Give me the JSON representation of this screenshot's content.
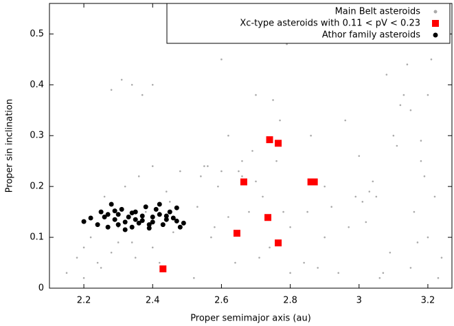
{
  "chart_data": {
    "type": "scatter",
    "x_label": "Proper semimajor axis (au)",
    "y_label": "Proper sin inclination",
    "xlim": [
      2.1,
      3.27
    ],
    "ylim": [
      0,
      0.56
    ],
    "xticks": [
      2.2,
      2.4,
      2.6,
      2.8,
      3,
      3.2
    ],
    "yticks": [
      0,
      0.1,
      0.2,
      0.3,
      0.4,
      0.5
    ],
    "legend": "upper right",
    "series": [
      {
        "name": "Main Belt asteroids",
        "color": "#aaaaaa",
        "marker": "circle",
        "x": [
          2.15,
          2.18,
          2.2,
          2.22,
          2.24,
          2.26,
          2.28,
          2.3,
          2.32,
          2.34,
          2.36,
          2.38,
          2.4,
          2.42,
          2.44,
          2.46,
          2.48,
          2.2,
          2.25,
          2.3,
          2.35,
          2.4,
          2.45,
          2.28,
          2.31,
          2.34,
          2.37,
          2.4,
          2.52,
          2.54,
          2.56,
          2.58,
          2.6,
          2.62,
          2.64,
          2.66,
          2.68,
          2.7,
          2.72,
          2.74,
          2.76,
          2.78,
          2.8,
          2.55,
          2.6,
          2.65,
          2.7,
          2.75,
          2.8,
          2.57,
          2.63,
          2.69,
          2.71,
          2.77,
          2.6,
          2.62,
          2.66,
          2.79,
          2.53,
          2.59,
          2.84,
          2.86,
          2.88,
          2.9,
          2.92,
          2.94,
          2.97,
          2.99,
          3.01,
          3.03,
          3.05,
          3.07,
          3.09,
          3.11,
          3.13,
          3.15,
          3.17,
          3.19,
          3.21,
          3.23,
          3.0,
          3.02,
          3.04,
          3.06,
          3.1,
          3.12,
          3.14,
          3.16,
          3.18,
          3.2,
          3.22,
          3.12,
          3.15,
          3.18,
          3.2,
          2.85,
          2.9,
          2.96,
          3.08,
          3.24
        ],
        "values": [
          0.03,
          0.06,
          0.08,
          0.1,
          0.05,
          0.18,
          0.07,
          0.12,
          0.2,
          0.09,
          0.22,
          0.15,
          0.24,
          0.05,
          0.19,
          0.11,
          0.23,
          0.02,
          0.04,
          0.09,
          0.06,
          0.08,
          0.17,
          0.39,
          0.41,
          0.4,
          0.38,
          0.4,
          0.02,
          0.22,
          0.24,
          0.12,
          0.23,
          0.3,
          0.05,
          0.22,
          0.15,
          0.38,
          0.18,
          0.08,
          0.25,
          0.15,
          0.12,
          0.24,
          0.45,
          0.23,
          0.21,
          0.37,
          0.03,
          0.1,
          0.5,
          0.27,
          0.06,
          0.33,
          0.53,
          0.14,
          0.25,
          0.48,
          0.16,
          0.2,
          0.05,
          0.3,
          0.04,
          0.2,
          0.16,
          0.03,
          0.12,
          0.18,
          0.17,
          0.19,
          0.18,
          0.03,
          0.07,
          0.28,
          0.38,
          0.35,
          0.09,
          0.22,
          0.45,
          0.02,
          0.26,
          0.13,
          0.21,
          0.02,
          0.3,
          0.36,
          0.44,
          0.15,
          0.25,
          0.38,
          0.18,
          0.5,
          0.04,
          0.29,
          0.1,
          0.15,
          0.1,
          0.33,
          0.42,
          0.06
        ]
      },
      {
        "name": "Xc-type asteroids with 0.11 < pV < 0.23",
        "color": "#ff0000",
        "marker": "square",
        "x": [
          2.43,
          2.645,
          2.665,
          2.74,
          2.765,
          2.735,
          2.765,
          2.86,
          2.87
        ],
        "values": [
          0.038,
          0.108,
          0.209,
          0.292,
          0.285,
          0.139,
          0.089,
          0.209,
          0.209
        ]
      },
      {
        "name": "Athor family asteroids",
        "color": "#000000",
        "marker": "circle",
        "x": [
          2.2,
          2.22,
          2.24,
          2.25,
          2.26,
          2.27,
          2.28,
          2.29,
          2.3,
          2.3,
          2.31,
          2.32,
          2.33,
          2.34,
          2.35,
          2.35,
          2.36,
          2.37,
          2.38,
          2.39,
          2.4,
          2.4,
          2.41,
          2.42,
          2.43,
          2.44,
          2.45,
          2.46,
          2.47,
          2.48,
          2.49,
          2.27,
          2.32,
          2.37,
          2.42,
          2.29,
          2.34,
          2.39,
          2.44,
          2.47
        ],
        "values": [
          0.131,
          0.138,
          0.125,
          0.15,
          0.14,
          0.12,
          0.165,
          0.135,
          0.145,
          0.125,
          0.155,
          0.13,
          0.14,
          0.12,
          0.15,
          0.135,
          0.128,
          0.142,
          0.16,
          0.118,
          0.14,
          0.13,
          0.155,
          0.145,
          0.125,
          0.135,
          0.15,
          0.138,
          0.158,
          0.12,
          0.128,
          0.145,
          0.115,
          0.133,
          0.165,
          0.152,
          0.148,
          0.125,
          0.142,
          0.132
        ]
      }
    ]
  }
}
